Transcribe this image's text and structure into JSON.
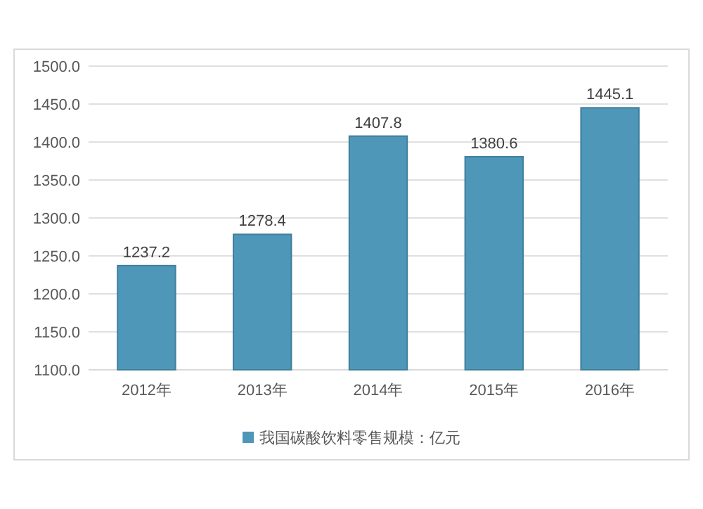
{
  "chart_data": {
    "type": "bar",
    "categories": [
      "2012年",
      "2013年",
      "2014年",
      "2015年",
      "2016年"
    ],
    "series": [
      {
        "name": "我国碳酸饮料零售规模：亿元",
        "color": "#4f97b8",
        "values": [
          1237.2,
          1278.4,
          1407.8,
          1380.6,
          1445.1
        ]
      }
    ],
    "ylim": [
      1100,
      1500
    ],
    "yticks": [
      {
        "value": 1100,
        "label": "1100.0"
      },
      {
        "value": 1150,
        "label": "1150.0"
      },
      {
        "value": 1200,
        "label": "1200.0"
      },
      {
        "value": 1250,
        "label": "1250.0"
      },
      {
        "value": 1300,
        "label": "1300.0"
      },
      {
        "value": 1350,
        "label": "1350.0"
      },
      {
        "value": 1400,
        "label": "1400.0"
      },
      {
        "value": 1450,
        "label": "1450.0"
      },
      {
        "value": 1500,
        "label": "1500.0"
      }
    ],
    "grid": "y",
    "legend": "bottom",
    "data_labels": true
  }
}
